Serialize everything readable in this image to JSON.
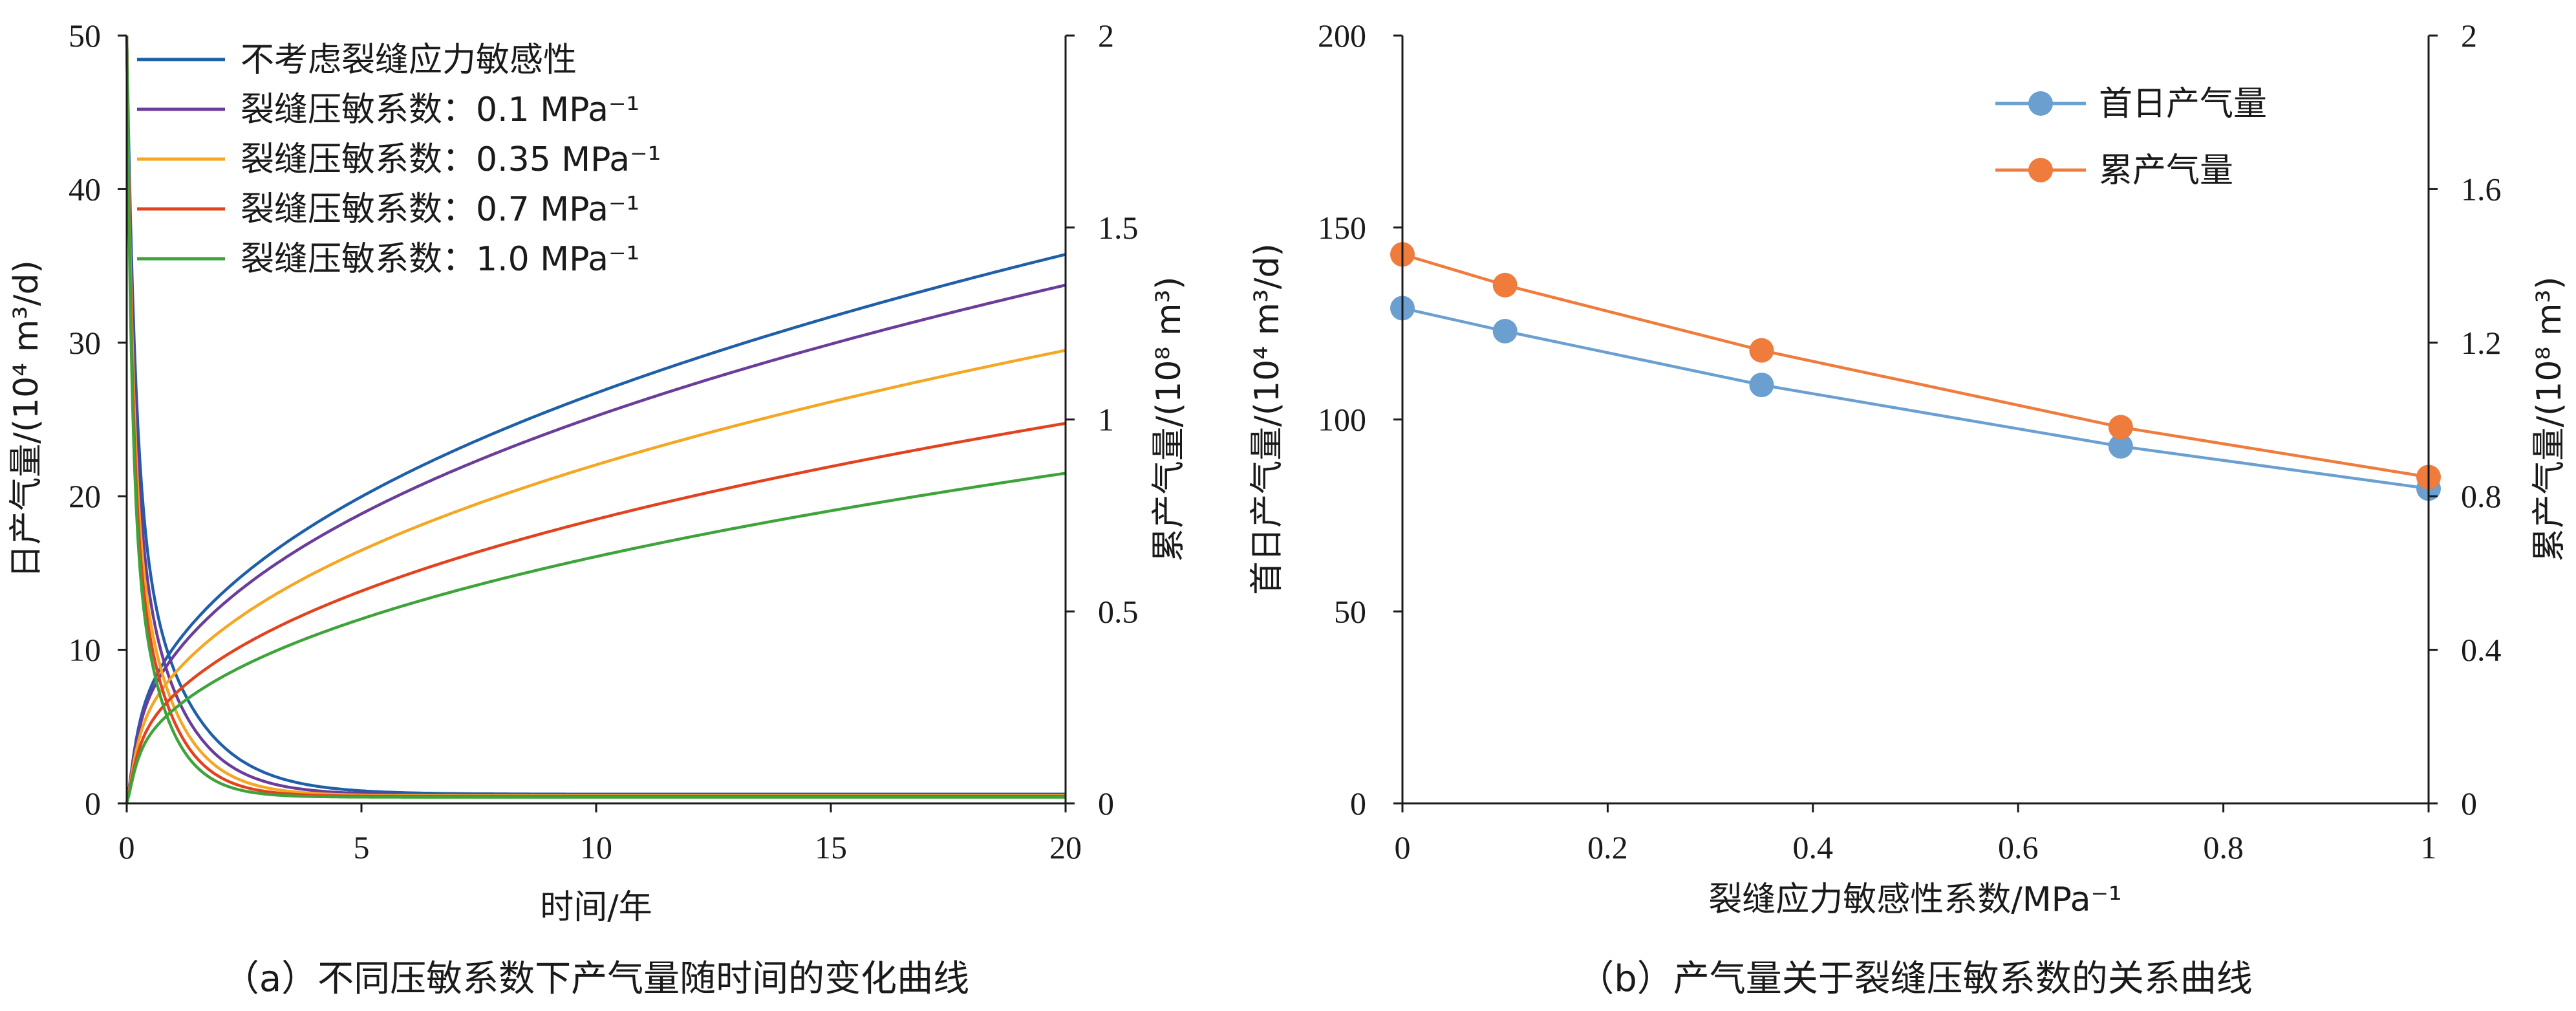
{
  "chart_data": [
    {
      "type": "line",
      "caption": "（a）不同压敏系数下产气量随时间的变化曲线",
      "xlabel": "时间/年",
      "ylabel": "日产气量/(10⁴ m³/d)",
      "y2label": "累产气量/(10⁸ m³)",
      "xlim": [
        0,
        20
      ],
      "ylim": [
        0,
        50
      ],
      "y2lim": [
        0,
        2
      ],
      "xticks": [
        "0",
        "5",
        "10",
        "15",
        "20"
      ],
      "yticks": [
        "0",
        "10",
        "20",
        "30",
        "40",
        "50"
      ],
      "y2ticks": [
        "0",
        "0.5",
        "1",
        "1.5",
        "2"
      ],
      "grid": false,
      "legend_position": "top-left",
      "series": [
        {
          "name": "不考虑裂缝应力敏感性",
          "color": "#1f5fa8",
          "daily_start": 50,
          "daily_end_20yr": 0.6,
          "cumulative_at_20yr": 1.43
        },
        {
          "name": "裂缝压敏系数：0.1 MPa⁻¹",
          "color": "#6a3d9a",
          "daily_start": 50,
          "daily_end_20yr": 0.55,
          "cumulative_at_20yr": 1.35
        },
        {
          "name": "裂缝压敏系数：0.35 MPa⁻¹",
          "color": "#f5a623",
          "daily_start": 50,
          "daily_end_20yr": 0.5,
          "cumulative_at_20yr": 1.18
        },
        {
          "name": "裂缝压敏系数：0.7 MPa⁻¹",
          "color": "#e2431e",
          "daily_start": 50,
          "daily_end_20yr": 0.45,
          "cumulative_at_20yr": 0.99
        },
        {
          "name": "裂缝压敏系数：1.0 MPa⁻¹",
          "color": "#3ea33a",
          "daily_start": 50,
          "daily_end_20yr": 0.4,
          "cumulative_at_20yr": 0.86
        }
      ]
    },
    {
      "type": "line",
      "caption": "（b）产气量关于裂缝压敏系数的关系曲线",
      "xlabel": "裂缝应力敏感性系数/MPa⁻¹",
      "ylabel": "首日产气量/(10⁴ m³/d)",
      "y2label": "累产气量/(10⁸ m³)",
      "xlim": [
        0,
        1
      ],
      "ylim": [
        0,
        200
      ],
      "y2lim": [
        0,
        2
      ],
      "xticks": [
        "0",
        "0.2",
        "0.4",
        "0.6",
        "0.8",
        "1"
      ],
      "yticks": [
        "0",
        "50",
        "100",
        "150",
        "200"
      ],
      "y2ticks": [
        "0",
        "0.4",
        "0.8",
        "1.2",
        "1.6",
        "2"
      ],
      "grid": false,
      "legend_position": "top-right",
      "x": [
        0,
        0.1,
        0.35,
        0.7,
        1.0
      ],
      "series": [
        {
          "name": "首日产气量",
          "axis": "left",
          "color": "#6a9fd0",
          "values": [
            129,
            123,
            109,
            93,
            82
          ]
        },
        {
          "name": "累产气量",
          "axis": "right",
          "color": "#ef7b3c",
          "values": [
            1.43,
            1.35,
            1.18,
            0.98,
            0.85
          ]
        }
      ]
    }
  ]
}
